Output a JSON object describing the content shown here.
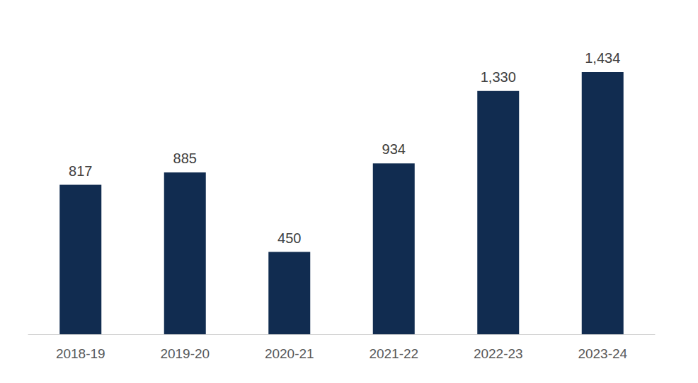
{
  "chart_data": {
    "type": "bar",
    "categories": [
      "2018-19",
      "2019-20",
      "2020-21",
      "2021-22",
      "2022-23",
      "2023-24"
    ],
    "values": [
      817,
      885,
      450,
      934,
      1330,
      1434
    ],
    "value_labels": [
      "817",
      "885",
      "450",
      "934",
      "1,330",
      "1,434"
    ],
    "color": "#112c50",
    "ylim": [
      0,
      1600
    ],
    "grid": false,
    "data_labels": true,
    "tick_labels": "x"
  }
}
